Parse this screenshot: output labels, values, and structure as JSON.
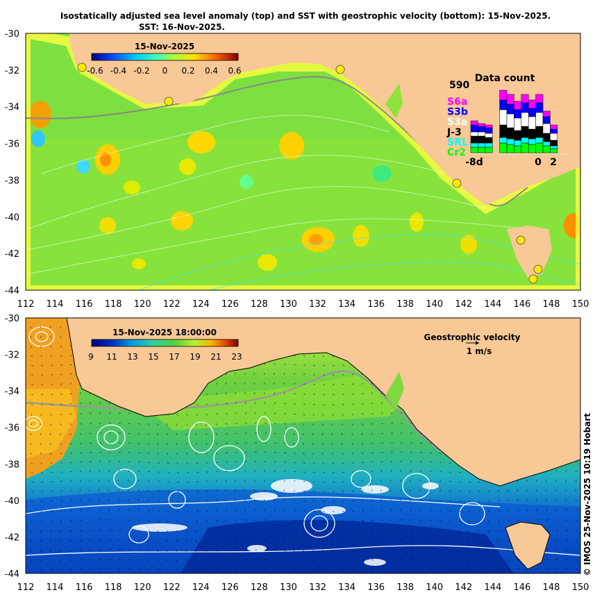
{
  "title_line1": "Isostatically adjusted sea level anomaly (top) and SST with geostrophic velocity (bottom): 15-Nov-2025.",
  "title_line2": "SST: 16-Nov-2025.",
  "x_ticks": [
    "112",
    "114",
    "116",
    "118",
    "120",
    "122",
    "124",
    "126",
    "128",
    "130",
    "132",
    "134",
    "136",
    "138",
    "140",
    "142",
    "144",
    "146",
    "148",
    "150"
  ],
  "y_ticks": [
    "-30",
    "-32",
    "-34",
    "-36",
    "-38",
    "-40",
    "-42",
    "-44"
  ],
  "top_panel": {
    "colorbar_title": "15-Nov-2025",
    "colorbar_ticks": [
      "-0.6",
      "-0.4",
      "-0.2",
      "0",
      "0.2",
      "0.4",
      "0.6"
    ],
    "data_count": {
      "title": "Data count",
      "max_label": "590",
      "satellites": [
        {
          "name": "S6a",
          "color": "#ff00ff"
        },
        {
          "name": "S3b",
          "color": "#0000ff"
        },
        {
          "name": "S3a",
          "color": "#ffffff"
        },
        {
          "name": "J-3",
          "color": "#000000"
        },
        {
          "name": "SRL",
          "color": "#00ffff"
        },
        {
          "name": "Cr2",
          "color": "#00ff00"
        }
      ],
      "x_labels": [
        "-8d",
        "0",
        "2"
      ]
    }
  },
  "bottom_panel": {
    "colorbar_title": "15-Nov-2025 18:00:00",
    "colorbar_ticks": [
      "9",
      "11",
      "13",
      "15",
      "17",
      "19",
      "21",
      "23"
    ],
    "velocity_title": "Geostrophic velocity",
    "velocity_scale": "1 m/s"
  },
  "copyright": "© IMOS 25-Nov-2025 10:19 Hobart",
  "colors": {
    "land": "#f8c896",
    "sla_cmap": [
      "#00007f",
      "#0050ff",
      "#00c8ff",
      "#40ffb0",
      "#a0ff40",
      "#ffe000",
      "#ff6000",
      "#7f0000"
    ],
    "sst_cmap": [
      "#00007f",
      "#0030c0",
      "#00a0e0",
      "#30d0a0",
      "#50d040",
      "#b8f030",
      "#ffb000",
      "#e04000",
      "#7f0000"
    ]
  }
}
